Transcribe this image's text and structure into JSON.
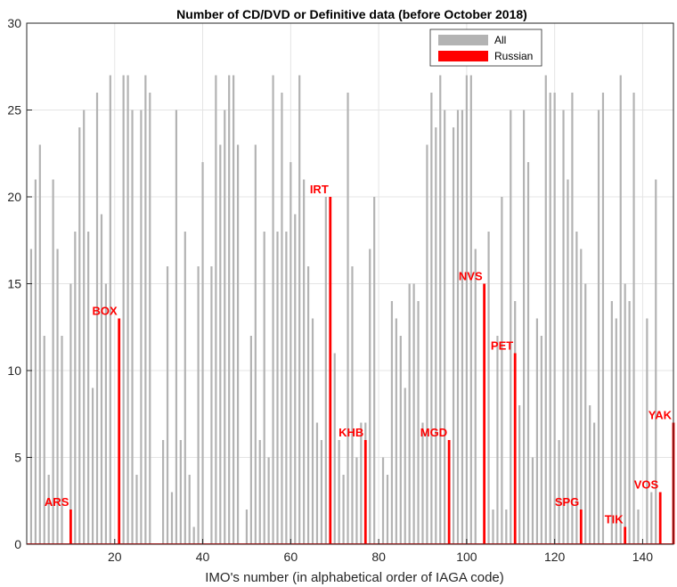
{
  "chart_data": {
    "type": "bar",
    "title": "Number of CD/DVD or Definitive data (before October 2018)",
    "xlabel": "IMO's number (in alphabetical order of IAGA code)",
    "ylabel": "",
    "xlim": [
      0,
      147
    ],
    "ylim": [
      0,
      30
    ],
    "xticks": [
      20,
      40,
      60,
      80,
      100,
      120,
      140
    ],
    "xtick_labels": [
      "20",
      "40",
      "60",
      "80",
      "100",
      "120",
      "140"
    ],
    "yticks": [
      0,
      5,
      10,
      15,
      20,
      25,
      30
    ],
    "ytick_labels": [
      "0",
      "5",
      "10",
      "15",
      "20",
      "25",
      "30"
    ],
    "grid": true,
    "legend_position": "top-right",
    "colors": {
      "all": "#b3b3b3",
      "russian": "#ff0000"
    },
    "series": [
      {
        "name": "All",
        "x": [
          1,
          2,
          3,
          4,
          5,
          6,
          7,
          8,
          9,
          10,
          11,
          12,
          13,
          14,
          15,
          16,
          17,
          18,
          19,
          20,
          21,
          22,
          23,
          24,
          25,
          26,
          27,
          28,
          29,
          30,
          31,
          32,
          33,
          34,
          35,
          36,
          37,
          38,
          39,
          40,
          41,
          42,
          43,
          44,
          45,
          46,
          47,
          48,
          49,
          50,
          51,
          52,
          53,
          54,
          55,
          56,
          57,
          58,
          59,
          60,
          61,
          62,
          63,
          64,
          65,
          66,
          67,
          68,
          69,
          70,
          71,
          72,
          73,
          74,
          75,
          76,
          77,
          78,
          79,
          80,
          81,
          82,
          83,
          84,
          85,
          86,
          87,
          88,
          89,
          90,
          91,
          92,
          93,
          94,
          95,
          96,
          97,
          98,
          99,
          100,
          101,
          102,
          103,
          104,
          105,
          106,
          107,
          108,
          109,
          110,
          111,
          112,
          113,
          114,
          115,
          116,
          117,
          118,
          119,
          120,
          121,
          122,
          123,
          124,
          125,
          126,
          127,
          128,
          129,
          130,
          131,
          132,
          133,
          134,
          135,
          136,
          137,
          138,
          139,
          140,
          141,
          142,
          143,
          144,
          145,
          146,
          147
        ],
        "values": [
          17,
          21,
          23,
          12,
          4,
          21,
          17,
          12,
          0,
          15,
          18,
          24,
          25,
          18,
          9,
          26,
          19,
          15,
          27,
          0,
          3,
          27,
          27,
          25,
          4,
          25,
          27,
          26,
          0,
          0,
          6,
          16,
          3,
          25,
          6,
          18,
          4,
          1,
          16,
          22,
          0,
          16,
          27,
          23,
          25,
          27,
          27,
          23,
          0,
          2,
          12,
          23,
          6,
          18,
          5,
          27,
          18,
          26,
          18,
          22,
          19,
          27,
          21,
          16,
          13,
          7,
          6,
          20,
          1,
          11,
          6,
          4,
          26,
          16,
          5,
          7,
          7,
          17,
          20,
          0,
          5,
          4,
          14,
          13,
          12,
          9,
          15,
          15,
          14,
          7,
          23,
          26,
          24,
          27,
          25,
          4,
          24,
          25,
          25,
          27,
          27,
          17,
          0,
          9,
          18,
          2,
          12,
          20,
          2,
          25,
          14,
          8,
          25,
          22,
          5,
          13,
          12,
          27,
          26,
          26,
          6,
          25,
          21,
          26,
          18,
          17,
          15,
          8,
          7,
          25,
          26,
          0,
          14,
          13,
          27,
          15,
          14,
          26,
          2,
          0,
          13,
          3,
          21,
          0,
          0,
          0,
          0
        ]
      },
      {
        "name": "Russian",
        "x": [
          10,
          21,
          69,
          77,
          96,
          104,
          111,
          126,
          136,
          144,
          147
        ],
        "values": [
          2,
          13,
          20,
          6,
          6,
          15,
          11,
          2,
          1,
          3,
          7
        ],
        "labels": [
          "ARS",
          "BOX",
          "IRT",
          "KHB",
          "MGD",
          "NVS",
          "PET",
          "SPG",
          "TIK",
          "VOS",
          "YAK"
        ]
      }
    ]
  }
}
